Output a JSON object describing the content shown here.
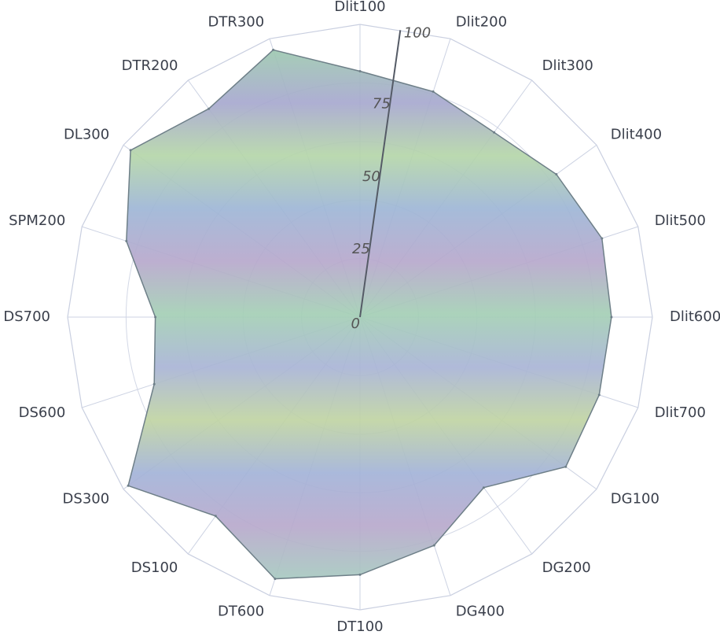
{
  "chart_data": {
    "type": "radar",
    "categories": [
      "Dlit100",
      "Dlit200",
      "Dlit300",
      "Dlit400",
      "Dlit500",
      "Dlit600",
      "Dlit700",
      "DG100",
      "DG200",
      "DG400",
      "DT100",
      "DT600",
      "DS100",
      "DS300",
      "DS600",
      "DS700",
      "SPM200",
      "DL300",
      "DTR200",
      "DTR300"
    ],
    "series": [
      {
        "values": [
          84,
          81,
          78,
          83,
          87,
          86,
          86,
          87,
          72,
          82,
          88,
          94,
          84,
          98,
          74,
          70,
          84,
          97,
          88,
          96
        ]
      }
    ],
    "radial_ticks": [
      "0",
      "25",
      "50",
      "75",
      "100"
    ],
    "rlim": [
      0,
      100
    ],
    "grid": true
  }
}
